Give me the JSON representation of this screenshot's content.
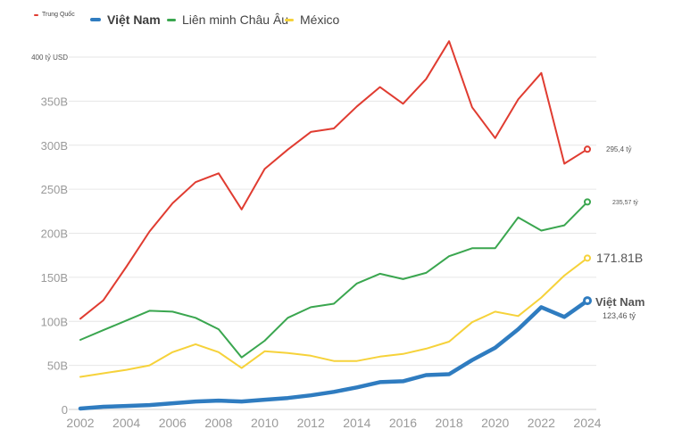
{
  "legend": {
    "china": "Trung Quốc",
    "vietnam": "Việt Nam",
    "eu": "Liên minh Châu Âu",
    "mexico": "México"
  },
  "colors": {
    "china": "#e03c31",
    "vietnam": "#2f7cc0",
    "eu": "#3aa64f",
    "mexico": "#f6d23a"
  },
  "end_labels": {
    "china": "295,4 tỷ",
    "eu": "235,57 tỷ",
    "mexico": "171.81B",
    "vietnam_name": "Việt Nam",
    "vietnam_value": "123,46 tỷ"
  },
  "chart_data": {
    "type": "line",
    "x": [
      2002,
      2003,
      2004,
      2005,
      2006,
      2007,
      2008,
      2009,
      2010,
      2011,
      2012,
      2013,
      2014,
      2015,
      2016,
      2017,
      2018,
      2019,
      2020,
      2021,
      2022,
      2023,
      2024
    ],
    "x_ticks": [
      "2002",
      "2004",
      "2006",
      "2008",
      "2010",
      "2012",
      "2014",
      "2016",
      "2018",
      "2020",
      "2022",
      "2024"
    ],
    "y_ticks": [
      "0",
      "50B",
      "100B",
      "150B",
      "200B",
      "250B",
      "300B",
      "350B",
      "400 tỷ USD"
    ],
    "ylim": [
      0,
      400
    ],
    "grid": true,
    "series": [
      {
        "name": "Trung Quốc",
        "key": "china",
        "values": [
          103,
          124,
          162,
          202,
          234,
          258,
          268,
          227,
          273,
          295,
          315,
          319,
          344,
          366,
          347,
          375,
          418,
          343,
          308,
          352,
          382,
          279,
          295.4
        ]
      },
      {
        "name": "Liên minh Châu Âu",
        "key": "eu",
        "values": [
          79,
          90,
          101,
          112,
          111,
          104,
          91,
          59,
          78,
          104,
          116,
          120,
          143,
          154,
          148,
          155,
          174,
          183,
          183,
          218,
          203,
          209,
          235.57
        ]
      },
      {
        "name": "México",
        "key": "mexico",
        "values": [
          37,
          41,
          45,
          50,
          65,
          74,
          65,
          47,
          66,
          64,
          61,
          55,
          55,
          60,
          63,
          69,
          77,
          99,
          111,
          106,
          127,
          152,
          171.81
        ]
      },
      {
        "name": "Việt Nam",
        "key": "vietnam",
        "values": [
          1,
          3,
          4,
          5,
          7,
          9,
          10,
          9,
          11,
          13,
          16,
          20,
          25,
          31,
          32,
          39,
          40,
          56,
          70,
          91,
          116,
          105,
          123.46
        ]
      }
    ]
  }
}
